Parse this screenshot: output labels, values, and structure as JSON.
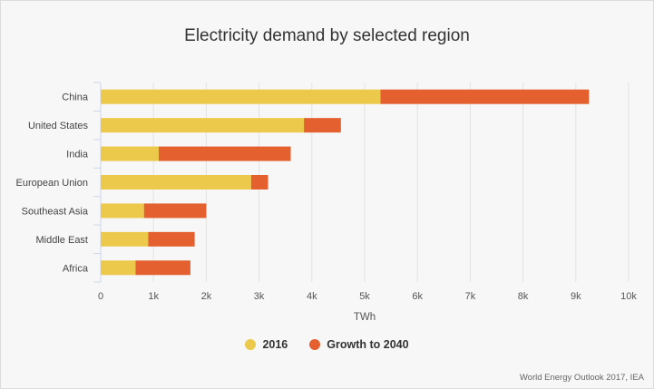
{
  "chart_data": {
    "type": "bar",
    "orientation": "horizontal",
    "stacked": true,
    "title": "Electricity demand by selected region",
    "xlabel": "TWh",
    "ylabel": "",
    "xlim": [
      0,
      10000
    ],
    "x_ticks": [
      0,
      1000,
      2000,
      3000,
      4000,
      5000,
      6000,
      7000,
      8000,
      9000,
      10000
    ],
    "x_tick_labels": [
      "0",
      "1k",
      "2k",
      "3k",
      "4k",
      "5k",
      "6k",
      "7k",
      "8k",
      "9k",
      "10k"
    ],
    "grid": "vertical",
    "legend_position": "bottom-center",
    "categories": [
      "China",
      "United States",
      "India",
      "European Union",
      "Southeast Asia",
      "Middle East",
      "Africa"
    ],
    "series": [
      {
        "name": "2016",
        "color": "#ecc94b",
        "values": [
          5300,
          3850,
          1100,
          2850,
          820,
          900,
          660
        ]
      },
      {
        "name": "Growth to 2040",
        "color": "#e4612f",
        "values": [
          3950,
          700,
          2500,
          320,
          1180,
          880,
          1040
        ]
      }
    ]
  },
  "credit": "World Energy Outlook 2017, IEA"
}
